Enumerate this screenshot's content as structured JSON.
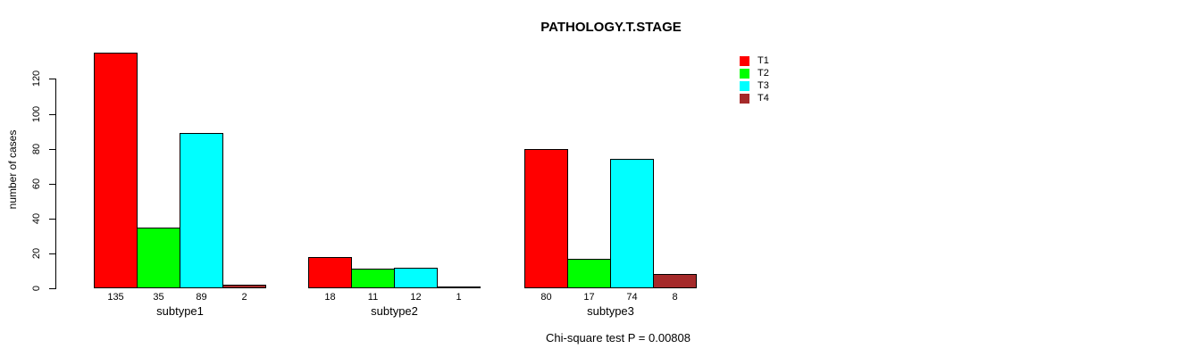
{
  "chart_data": {
    "type": "bar",
    "title": "PATHOLOGY.T.STAGE",
    "xlabel": "",
    "ylabel": "number of cases",
    "categories": [
      "subtype1",
      "subtype2",
      "subtype3"
    ],
    "series": [
      {
        "name": "T1",
        "color": "#ff0000",
        "values": [
          135,
          18,
          80
        ]
      },
      {
        "name": "T2",
        "color": "#00ff00",
        "values": [
          35,
          11,
          17
        ]
      },
      {
        "name": "T3",
        "color": "#00ffff",
        "values": [
          89,
          12,
          74
        ]
      },
      {
        "name": "T4",
        "color": "#a52a2a",
        "values": [
          2,
          1,
          8
        ]
      }
    ],
    "yticks": [
      0,
      20,
      40,
      60,
      80,
      100,
      120
    ],
    "ylim": [
      0,
      135
    ],
    "grid": false,
    "bar_value_labels": true,
    "legend_position": "top-right",
    "annotation": "Chi-square test P = 0.00808",
    "axis_color": "#000000",
    "background_color": "#ffffff"
  }
}
